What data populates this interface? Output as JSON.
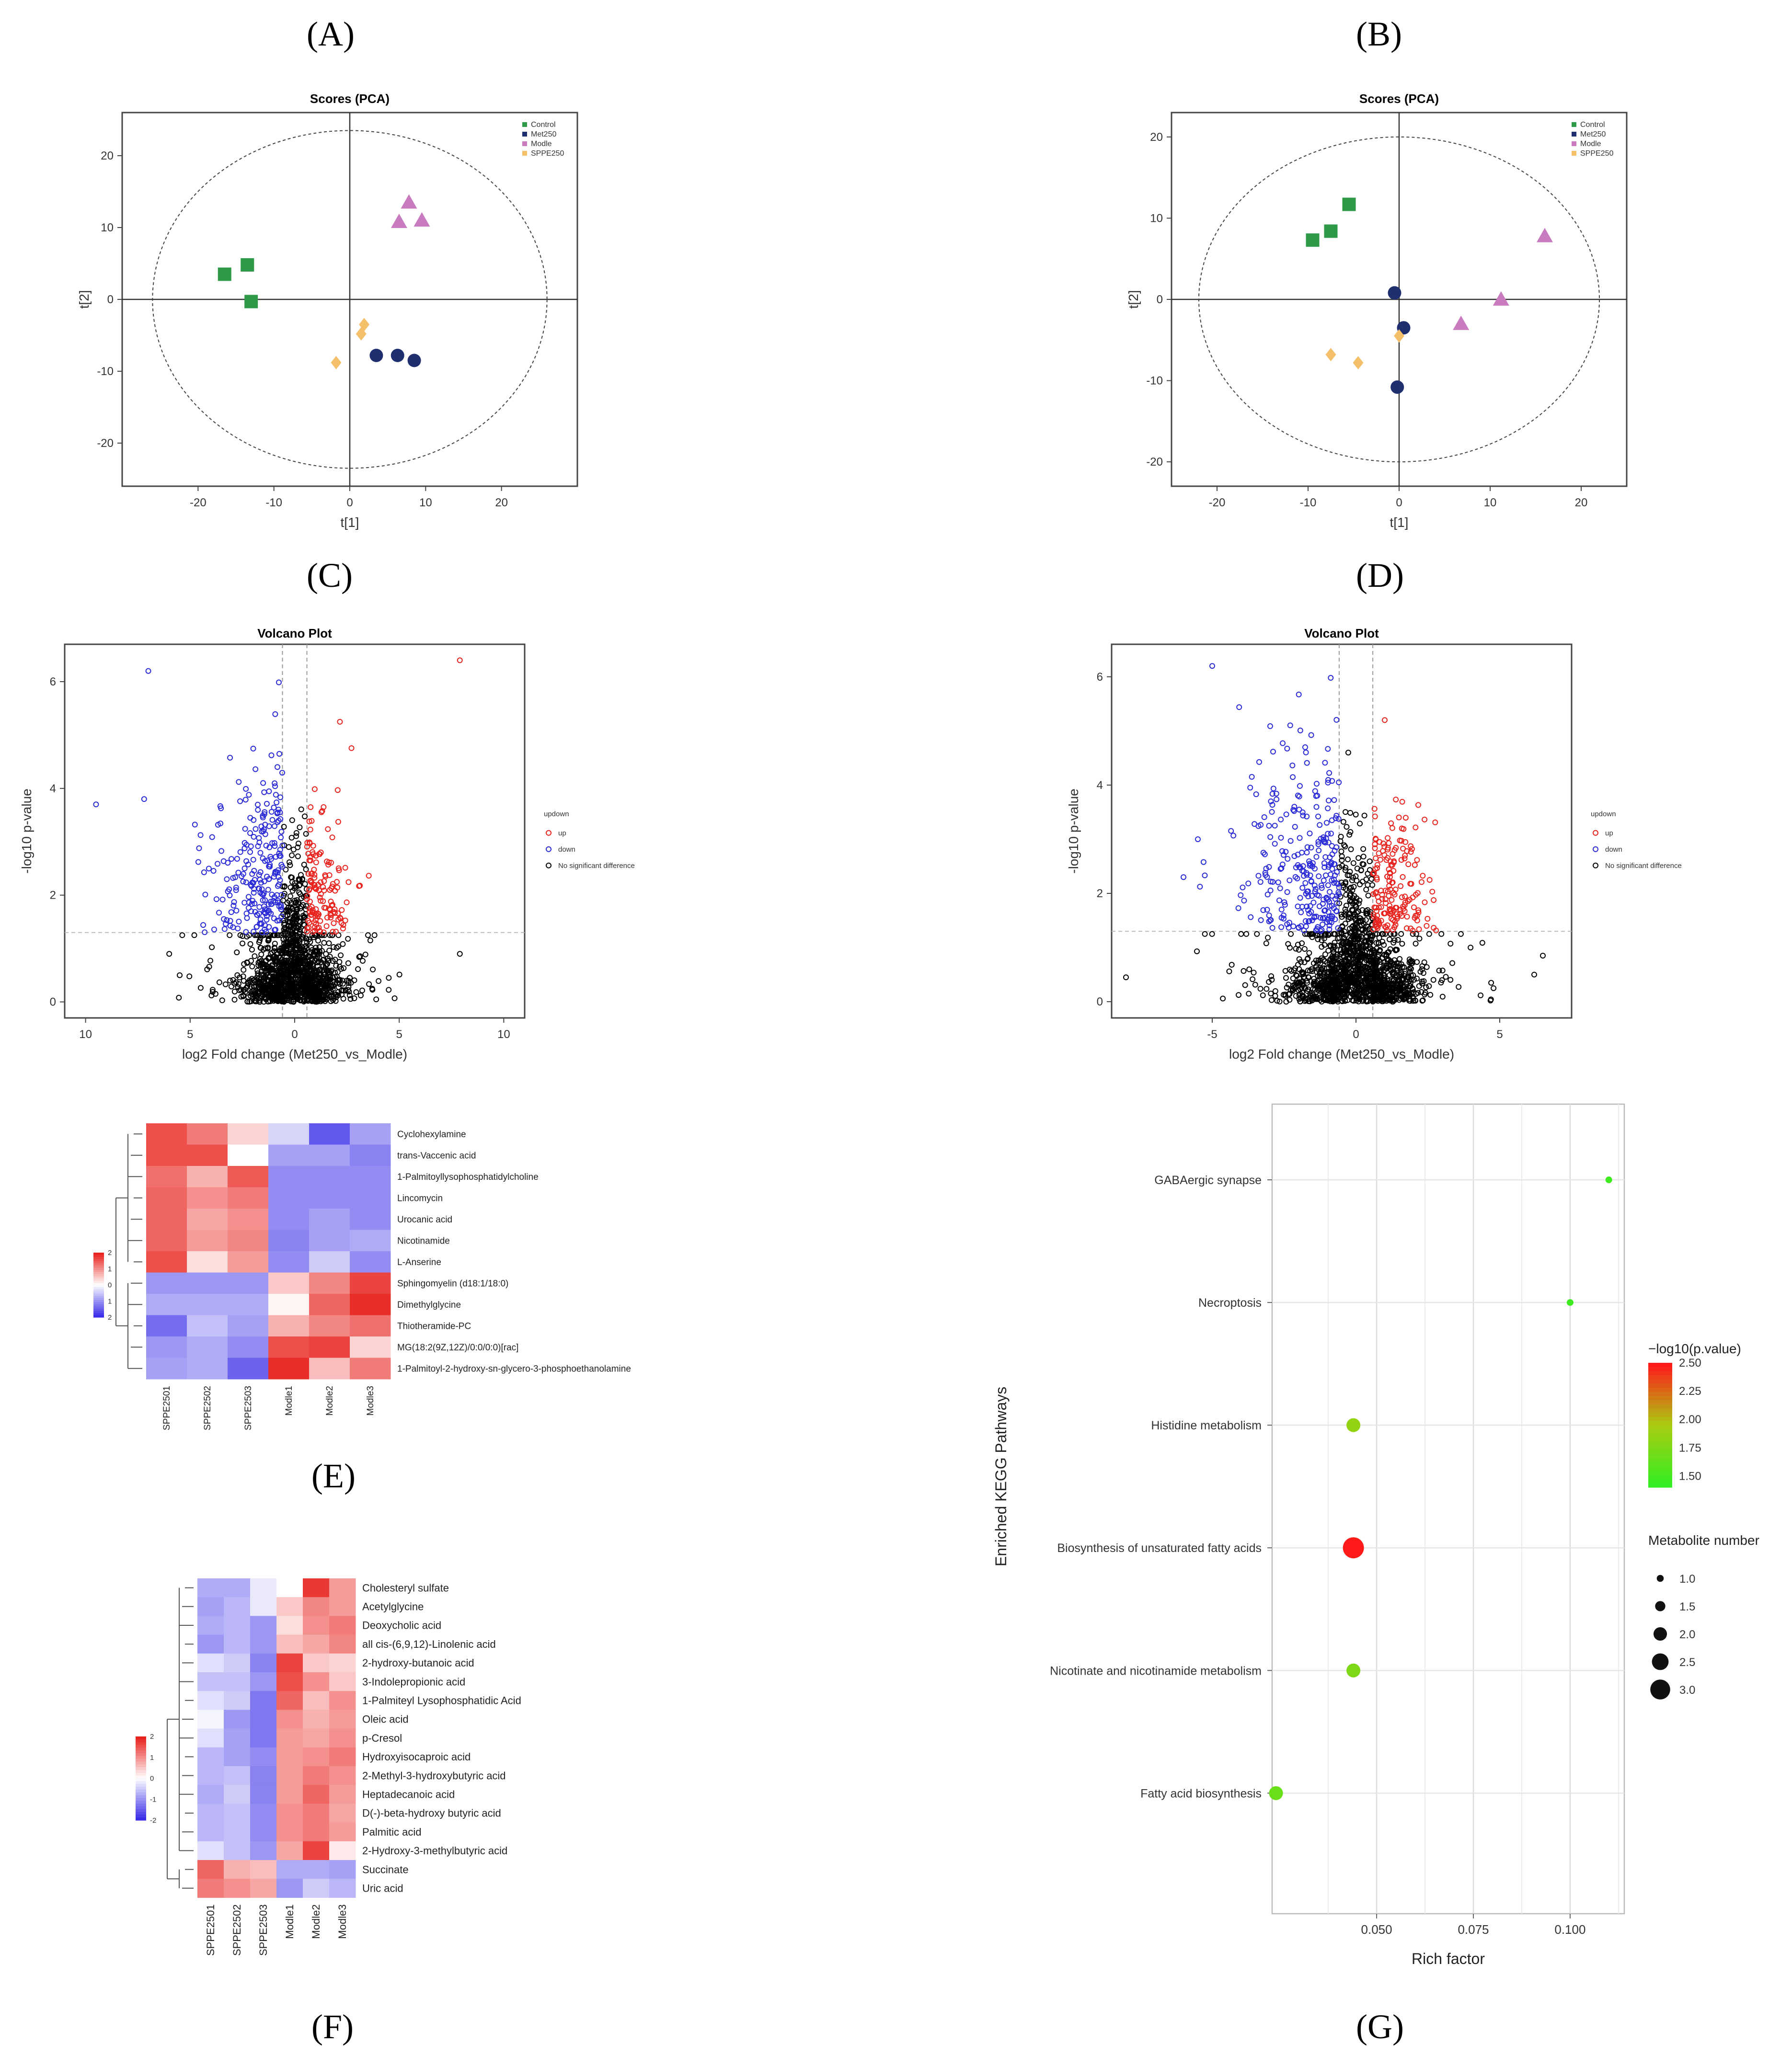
{
  "panel_labels": {
    "A": "(A)",
    "B": "(B)",
    "C": "(C)",
    "D": "(D)",
    "E": "(E)",
    "F": "(F)",
    "G": "(G)"
  },
  "colors": {
    "control": "#2e9a47",
    "met250": "#1f2e6e",
    "modle": "#c97bbf",
    "sppe250": "#f5c06a",
    "up": "#e8231e",
    "down": "#2b2bd8",
    "ns": "#000000",
    "heat_high": "#e8231e",
    "heat_mid": "#ffffff",
    "heat_low": "#3a2ee8"
  },
  "chart_data": [
    {
      "id": "A",
      "type": "scatter",
      "title": "Scores (PCA)",
      "xlabel": "t[1]",
      "ylabel": "t[2]",
      "xlim": [
        -30,
        30
      ],
      "ylim": [
        -26,
        26
      ],
      "xticks": [
        -20,
        -10,
        0,
        10,
        20
      ],
      "yticks": [
        -20,
        -10,
        0,
        10,
        20
      ],
      "ellipse": {
        "rx": 26,
        "ry": 23.5
      },
      "legend": [
        "Control",
        "Met250",
        "Modle",
        "SPPE250"
      ],
      "series": [
        {
          "name": "Control",
          "marker": "square",
          "points": [
            [
              -16.5,
              3.5
            ],
            [
              -13.5,
              4.8
            ],
            [
              -13,
              -0.3
            ]
          ]
        },
        {
          "name": "Met250",
          "marker": "circle",
          "points": [
            [
              3.5,
              -7.8
            ],
            [
              6.3,
              -7.8
            ],
            [
              8.5,
              -8.5
            ]
          ]
        },
        {
          "name": "Modle",
          "marker": "triangle",
          "points": [
            [
              6.5,
              10.8
            ],
            [
              7.8,
              13.5
            ],
            [
              9.5,
              11
            ]
          ]
        },
        {
          "name": "SPPE250",
          "marker": "diamond",
          "points": [
            [
              -1.8,
              -8.8
            ],
            [
              1.5,
              -4.8
            ],
            [
              1.9,
              -3.5
            ]
          ]
        }
      ]
    },
    {
      "id": "B",
      "type": "scatter",
      "title": "Scores (PCA)",
      "xlabel": "t[1]",
      "ylabel": "t[2]",
      "xlim": [
        -25,
        25
      ],
      "ylim": [
        -23,
        23
      ],
      "xticks": [
        -20,
        -10,
        0,
        10,
        20
      ],
      "yticks": [
        -20,
        -10,
        0,
        10,
        20
      ],
      "ellipse": {
        "rx": 22,
        "ry": 20
      },
      "legend": [
        "Control",
        "Met250",
        "Modle",
        "SPPE250"
      ],
      "series": [
        {
          "name": "Control",
          "marker": "square",
          "points": [
            [
              -9.5,
              7.3
            ],
            [
              -7.5,
              8.4
            ],
            [
              -5.5,
              11.7
            ]
          ]
        },
        {
          "name": "Met250",
          "marker": "circle",
          "points": [
            [
              -0.5,
              0.8
            ],
            [
              0.5,
              -3.5
            ],
            [
              -0.2,
              -10.8
            ]
          ]
        },
        {
          "name": "Modle",
          "marker": "triangle",
          "points": [
            [
              6.8,
              -3
            ],
            [
              11.2,
              0
            ],
            [
              16,
              7.8
            ]
          ]
        },
        {
          "name": "SPPE250",
          "marker": "diamond",
          "points": [
            [
              -7.5,
              -6.8
            ],
            [
              -4.5,
              -7.8
            ],
            [
              0,
              -4.5
            ]
          ]
        }
      ]
    },
    {
      "id": "C",
      "type": "scatter",
      "title": "Volcano Plot",
      "xlabel": "log2 Fold change (Met250_vs_Modle)",
      "ylabel": "-log10 p-value",
      "xlim": [
        -11,
        11
      ],
      "ylim": [
        -0.3,
        6.7
      ],
      "xticks": [
        -10,
        -5,
        0,
        5,
        10
      ],
      "xtick_labels": [
        "10",
        "5",
        "0",
        "5",
        "10"
      ],
      "yticks": [
        0,
        2,
        4,
        6
      ],
      "fc_cut": 0.585,
      "p_cut": 1.3,
      "legend_title": "updown",
      "legend": [
        "up",
        "down",
        "No significant difference"
      ],
      "seed": 11,
      "n_down": 240,
      "n_up": 140,
      "n_ns": 1400,
      "extremes": [
        [
          -7,
          6.2
        ],
        [
          -9.5,
          3.7
        ],
        [
          -7.2,
          3.8
        ],
        [
          7.9,
          6.4
        ],
        [
          7.9,
          0.9
        ],
        [
          -6,
          0.9
        ],
        [
          -5.5,
          0.5
        ],
        [
          4.5,
          0.45
        ]
      ]
    },
    {
      "id": "D",
      "type": "scatter",
      "title": "Volcano Plot",
      "xlabel": "log2 Fold change (Met250_vs_Modle)",
      "ylabel": "-log10 p-value",
      "xlim": [
        -8.5,
        7.5
      ],
      "ylim": [
        -0.3,
        6.6
      ],
      "xticks": [
        -5,
        0,
        5
      ],
      "xtick_labels": [
        "-5",
        "0",
        "5"
      ],
      "yticks": [
        0,
        2,
        4,
        6
      ],
      "fc_cut": 0.585,
      "p_cut": 1.3,
      "legend_title": "updown",
      "legend": [
        "up",
        "down",
        "No significant difference"
      ],
      "seed": 23,
      "n_down": 280,
      "n_up": 180,
      "n_ns": 1500,
      "extremes": [
        [
          -5,
          6.2
        ],
        [
          -5.5,
          3
        ],
        [
          -6,
          2.3
        ],
        [
          -8,
          0.45
        ],
        [
          6.5,
          0.85
        ],
        [
          6.2,
          0.5
        ],
        [
          1,
          5.2
        ]
      ]
    },
    {
      "id": "E",
      "type": "heatmap",
      "columns": [
        "SPPE2501",
        "SPPE2502",
        "SPPE2503",
        "Modle1",
        "Modle2",
        "Modle3"
      ],
      "rows": [
        "Cyclohexylamine",
        "trans-Vaccenic acid",
        "1-Palmitoyllysophosphatidylcholine",
        "Lincomycin",
        "Urocanic acid",
        "Nicotinamide",
        "L-Anserine",
        "Sphingomyelin (d18:1/18:0)",
        "Dimethylglycine",
        "Thiotheramide-PC",
        "MG(18:2(9Z,12Z)/0:0/0:0)[rac]",
        "1-Palmitoyl-2-hydroxy-sn-glycero-3-phosphoethanolamine"
      ],
      "values": [
        [
          1.6,
          1.2,
          0.4,
          -0.4,
          -1.6,
          -0.9
        ],
        [
          1.6,
          1.6,
          0.0,
          -0.9,
          -0.9,
          -1.2
        ],
        [
          1.3,
          0.7,
          1.5,
          -1.1,
          -1.1,
          -1.1
        ],
        [
          1.4,
          1.0,
          1.2,
          -1.1,
          -1.1,
          -1.1
        ],
        [
          1.4,
          0.8,
          1.0,
          -1.1,
          -0.9,
          -1.1
        ],
        [
          1.4,
          0.9,
          1.1,
          -1.2,
          -0.9,
          -0.8
        ],
        [
          1.6,
          0.3,
          0.9,
          -1.1,
          -0.5,
          -1.1
        ],
        [
          -1.0,
          -1.0,
          -1.0,
          0.5,
          1.1,
          1.7
        ],
        [
          -0.8,
          -0.8,
          -0.8,
          0.1,
          1.4,
          1.9
        ],
        [
          -1.4,
          -0.6,
          -0.9,
          0.7,
          1.1,
          1.3
        ],
        [
          -1.0,
          -0.8,
          -1.1,
          1.6,
          1.7,
          0.4
        ],
        [
          -0.9,
          -0.8,
          -1.5,
          1.9,
          0.6,
          1.2
        ]
      ],
      "scale": {
        "ticks": [
          "2",
          "1",
          "0",
          "1",
          "2"
        ],
        "range": [
          -2,
          2
        ]
      }
    },
    {
      "id": "F",
      "type": "heatmap",
      "columns": [
        "SPPE2501",
        "SPPE2502",
        "SPPE2503",
        "Modle1",
        "Modle2",
        "Modle3"
      ],
      "rows": [
        "Cholesteryl sulfate",
        "Acetylglycine",
        "Deoxycholic acid",
        "all cis-(6,9,12)-Linolenic acid",
        "2-hydroxy-butanoic acid",
        "3-Indolepropionic acid",
        "1-Palmiteyl Lysophosphatidic Acid",
        "Oleic acid",
        "p-Cresol",
        "Hydroxyisocaproic acid",
        "2-Methyl-3-hydroxybutyric acid",
        "Heptadecanoic acid",
        "D(-)-beta-hydroxy butyric acid",
        "Palmitic acid",
        "2-Hydroxy-3-methylbutyric acid",
        "Succinate",
        "Uric acid"
      ],
      "values": [
        [
          -0.8,
          -0.8,
          -0.2,
          0.0,
          1.8,
          0.9
        ],
        [
          -0.9,
          -0.7,
          -0.2,
          0.5,
          1.1,
          0.9
        ],
        [
          -0.8,
          -0.7,
          -1.0,
          0.3,
          1.0,
          1.2
        ],
        [
          -1.0,
          -0.7,
          -1.0,
          0.6,
          0.8,
          1.1
        ],
        [
          -0.3,
          -0.5,
          -1.2,
          1.7,
          0.5,
          0.4
        ],
        [
          -0.6,
          -0.6,
          -1.0,
          1.6,
          1.0,
          0.5
        ],
        [
          -0.3,
          -0.5,
          -1.3,
          1.4,
          0.6,
          1.0
        ],
        [
          -0.1,
          -1.0,
          -1.3,
          1.0,
          0.7,
          0.9
        ],
        [
          -0.3,
          -0.9,
          -1.3,
          0.9,
          0.8,
          1.0
        ],
        [
          -0.7,
          -0.9,
          -1.1,
          0.9,
          1.0,
          1.2
        ],
        [
          -0.7,
          -0.6,
          -1.2,
          0.9,
          1.2,
          1.0
        ],
        [
          -0.8,
          -0.5,
          -1.2,
          0.9,
          1.4,
          0.9
        ],
        [
          -0.7,
          -0.6,
          -1.1,
          1.0,
          1.2,
          0.8
        ],
        [
          -0.7,
          -0.6,
          -1.1,
          1.0,
          1.2,
          0.9
        ],
        [
          -0.3,
          -0.6,
          -1.0,
          0.8,
          1.7,
          0.2
        ],
        [
          1.4,
          0.7,
          0.6,
          -0.8,
          -0.8,
          -0.9
        ],
        [
          1.2,
          1.0,
          0.8,
          -1.0,
          -0.5,
          -0.7
        ]
      ],
      "scale": {
        "ticks": [
          "2",
          "1",
          "0",
          "-1",
          "-2"
        ],
        "range": [
          -2,
          2
        ]
      }
    },
    {
      "id": "G",
      "type": "bubble",
      "xlabel": "Rich factor",
      "ylabel": "Enriched KEGG Pathways",
      "xlim": [
        0.023,
        0.114
      ],
      "xticks": [
        0.05,
        0.075,
        0.1
      ],
      "xtick_labels": [
        "0.050",
        "0.075",
        "0.100"
      ],
      "color_label": "−log10(p.value)",
      "color_range": [
        1.4,
        2.5
      ],
      "color_ticks": [
        "2.50",
        "2.25",
        "2.00",
        "1.75",
        "1.50"
      ],
      "size_label": "Metabolite number",
      "size_ticks": [
        "1.0",
        "1.5",
        "2.0",
        "2.5",
        "3.0"
      ],
      "points": [
        {
          "pathway": "GABAergic synapse",
          "rich_factor": 0.11,
          "count": 1,
          "p": 1.45
        },
        {
          "pathway": "Necroptosis",
          "rich_factor": 0.1,
          "count": 1,
          "p": 1.45
        },
        {
          "pathway": "Histidine metabolism",
          "rich_factor": 0.044,
          "count": 2,
          "p": 1.85
        },
        {
          "pathway": "Biosynthesis of unsaturated fatty acids",
          "rich_factor": 0.044,
          "count": 3,
          "p": 2.5
        },
        {
          "pathway": "Nicotinate and nicotinamide metabolism",
          "rich_factor": 0.044,
          "count": 2,
          "p": 1.75
        },
        {
          "pathway": "Fatty acid biosynthesis",
          "rich_factor": 0.024,
          "count": 2,
          "p": 1.65
        }
      ]
    }
  ]
}
